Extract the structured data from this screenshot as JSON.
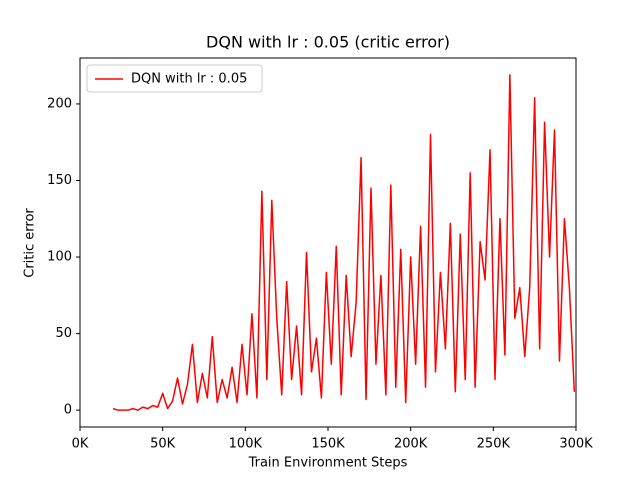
{
  "chart_data": {
    "type": "line",
    "title": "DQN with lr : 0.05 (critic error)",
    "x_label": "Train Environment Steps",
    "y_label": "Critic error",
    "x": [
      20000,
      23000,
      26000,
      29000,
      32000,
      35000,
      38000,
      41000,
      44000,
      47000,
      50000,
      53000,
      56000,
      59000,
      62000,
      65000,
      68000,
      71000,
      74000,
      77000,
      80000,
      83000,
      86000,
      89000,
      92000,
      95000,
      98000,
      101000,
      104000,
      107000,
      110000,
      113000,
      116000,
      119000,
      122000,
      125000,
      128000,
      131000,
      134000,
      137000,
      140000,
      143000,
      146000,
      149000,
      152000,
      155000,
      158000,
      161000,
      164000,
      167000,
      170000,
      173000,
      176000,
      179000,
      182000,
      185000,
      188000,
      191000,
      194000,
      197000,
      200000,
      203000,
      206000,
      209000,
      212000,
      215000,
      218000,
      221000,
      224000,
      227000,
      230000,
      233000,
      236000,
      239000,
      242000,
      245000,
      248000,
      251000,
      254000,
      257000,
      260000,
      263000,
      266000,
      269000,
      272000,
      275000,
      278000,
      281000,
      284000,
      287000,
      290000,
      293000,
      296000,
      299000
    ],
    "series": [
      {
        "name": "DQN with lr : 0.05",
        "color": "#ff0000",
        "values": [
          1,
          0,
          0,
          0,
          1,
          0,
          2,
          1,
          3,
          2,
          11,
          1,
          6,
          21,
          4,
          17,
          43,
          5,
          24,
          8,
          48,
          5,
          20,
          8,
          28,
          5,
          43,
          10,
          63,
          8,
          143,
          20,
          137,
          60,
          10,
          84,
          20,
          55,
          10,
          103,
          25,
          47,
          8,
          90,
          30,
          107,
          10,
          88,
          35,
          70,
          165,
          7,
          145,
          30,
          88,
          10,
          147,
          15,
          105,
          5,
          100,
          30,
          120,
          15,
          180,
          25,
          90,
          40,
          122,
          12,
          115,
          20,
          155,
          15,
          110,
          85,
          170,
          20,
          125,
          36,
          219,
          60,
          80,
          35,
          80,
          204,
          40,
          188,
          100,
          183,
          32,
          125,
          80,
          12
        ]
      }
    ],
    "xlim": [
      0,
      300000
    ],
    "ylim": [
      -11,
      230
    ],
    "xticks": [
      {
        "value": 0,
        "label": "0K"
      },
      {
        "value": 50000,
        "label": "50K"
      },
      {
        "value": 100000,
        "label": "100K"
      },
      {
        "value": 150000,
        "label": "150K"
      },
      {
        "value": 200000,
        "label": "200K"
      },
      {
        "value": 250000,
        "label": "250K"
      },
      {
        "value": 300000,
        "label": "300K"
      }
    ],
    "yticks": [
      0,
      50,
      100,
      150,
      200
    ],
    "legend": "upper left"
  }
}
